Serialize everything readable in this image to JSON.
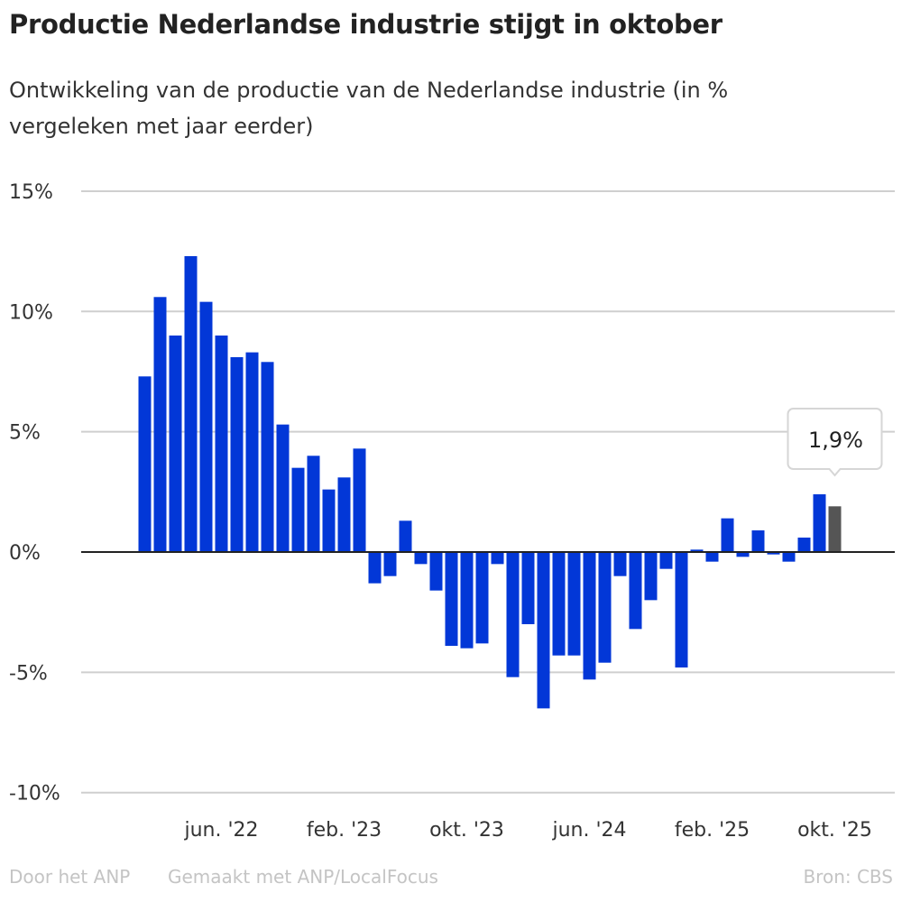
{
  "title": "Productie Nederlandse industrie stijgt in oktober",
  "subtitle": "Ontwikkeling van de productie van de Nederlandse industrie (in % vergeleken met jaar eerder)",
  "footer": {
    "author": "Door het ANP",
    "made_with": "Gemaakt met ANP/LocalFocus",
    "source": "Bron:  CBS"
  },
  "chart_data": {
    "type": "bar",
    "title": "Productie Nederlandse industrie stijgt in oktober",
    "ylim": [
      -10,
      15
    ],
    "yticks": [
      {
        "v": 15,
        "label": "15%"
      },
      {
        "v": 10,
        "label": "10%"
      },
      {
        "v": 5,
        "label": "5%"
      },
      {
        "v": 0,
        "label": "0%"
      },
      {
        "v": -5,
        "label": "-5%"
      },
      {
        "v": -10,
        "label": "-10%"
      }
    ],
    "xticks": [
      {
        "i": 5,
        "label": "jun. '22"
      },
      {
        "i": 13,
        "label": "feb. '23"
      },
      {
        "i": 21,
        "label": "okt. '23"
      },
      {
        "i": 29,
        "label": "jun. '24"
      },
      {
        "i": 37,
        "label": "feb. '25"
      },
      {
        "i": 45,
        "label": "okt. '25"
      }
    ],
    "categories": [
      "jan. '22",
      "feb. '22",
      "mrt. '22",
      "apr. '22",
      "mei '22",
      "jun. '22",
      "jul. '22",
      "aug. '22",
      "sep. '22",
      "okt. '22",
      "nov. '22",
      "dec. '22",
      "jan. '23",
      "feb. '23",
      "mrt. '23",
      "apr. '23",
      "mei '23",
      "jun. '23",
      "jul. '23",
      "aug. '23",
      "sep. '23",
      "okt. '23",
      "nov. '23",
      "dec. '23",
      "jan. '24",
      "feb. '24",
      "mrt. '24",
      "apr. '24",
      "mei '24",
      "jun. '24",
      "jul. '24",
      "aug. '24",
      "sep. '24",
      "okt. '24",
      "nov. '24",
      "dec. '24",
      "jan. '25",
      "feb. '25",
      "mrt. '25",
      "apr. '25",
      "mei '25",
      "jun. '25",
      "jul. '25",
      "aug. '25",
      "sep. '25",
      "okt. '25"
    ],
    "values": [
      7.3,
      10.6,
      9.0,
      12.3,
      10.4,
      9.0,
      8.1,
      8.3,
      7.9,
      5.3,
      3.5,
      4.0,
      2.6,
      3.1,
      4.3,
      -1.3,
      -1.0,
      1.3,
      -0.5,
      -1.6,
      -3.9,
      -4.0,
      -3.8,
      -0.5,
      -5.2,
      -3.0,
      -6.5,
      -4.3,
      -4.3,
      -5.3,
      -4.6,
      -1.0,
      -3.2,
      -2.0,
      -0.7,
      -4.8,
      0.1,
      -0.4,
      1.4,
      -0.2,
      0.9,
      -0.1,
      -0.4,
      0.6,
      2.4,
      1.9
    ],
    "bar_color": "#0237d7",
    "highlight_color": "#555555",
    "highlight_index": 45,
    "annotation": "1,9%",
    "grid": true
  }
}
